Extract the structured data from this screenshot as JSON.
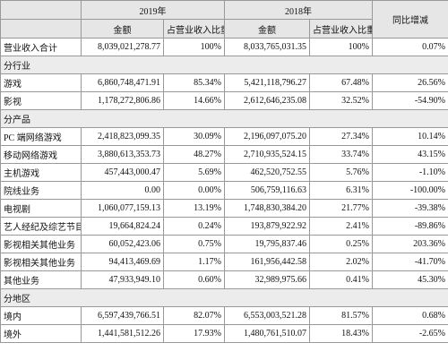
{
  "table": {
    "header": {
      "year_2019": "2019年",
      "year_2018": "2018年",
      "change": "同比增减",
      "columns": [
        "金额",
        "占营业收入比重",
        "金额",
        "占营业收入比重"
      ]
    },
    "rows": [
      [
        "营业收入合计",
        "8,039,021,278.77",
        "100%",
        "8,033,765,031.35",
        "100%",
        "0.07%"
      ],
      [
        "分行业"
      ],
      [
        "游戏",
        "6,860,748,471.91",
        "85.34%",
        "5,421,118,796.27",
        "67.48%",
        "26.56%"
      ],
      [
        "影视",
        "1,178,272,806.86",
        "14.66%",
        "2,612,646,235.08",
        "32.52%",
        "-54.90%"
      ],
      [
        "分产品"
      ],
      [
        "PC 端网络游戏",
        "2,418,823,099.35",
        "30.09%",
        "2,196,097,075.20",
        "27.34%",
        "10.14%"
      ],
      [
        "移动网络游戏",
        "3,880,613,353.73",
        "48.27%",
        "2,710,935,524.15",
        "33.74%",
        "43.15%"
      ],
      [
        "主机游戏",
        "457,443,000.47",
        "5.69%",
        "462,520,752.55",
        "5.76%",
        "-1.10%"
      ],
      [
        "院线业务",
        "0.00",
        "0.00%",
        "506,759,116.63",
        "6.31%",
        "-100.00%"
      ],
      [
        "电视剧",
        "1,060,077,159.13",
        "13.19%",
        "1,748,830,384.20",
        "21.77%",
        "-39.38%"
      ],
      [
        "艺人经纪及综艺节目",
        "19,664,824.24",
        "0.24%",
        "193,879,922.92",
        "2.41%",
        "-89.86%"
      ],
      [
        "影视相关其他业务",
        "60,052,423.06",
        "0.75%",
        "19,795,837.46",
        "0.25%",
        "203.36%"
      ],
      [
        "影视相关其他业务",
        "94,413,469.69",
        "1.17%",
        "161,956,442.58",
        "2.02%",
        "-41.70%"
      ],
      [
        "其他业务",
        "47,933,949.10",
        "0.60%",
        "32,989,975.66",
        "0.41%",
        "45.30%"
      ],
      [
        "分地区"
      ],
      [
        "境内",
        "6,597,439,766.51",
        "82.07%",
        "6,553,003,521.28",
        "81.57%",
        "0.68%"
      ],
      [
        "境外",
        "1,441,581,512.26",
        "17.93%",
        "1,480,761,510.07",
        "18.43%",
        "-2.65%"
      ]
    ]
  }
}
